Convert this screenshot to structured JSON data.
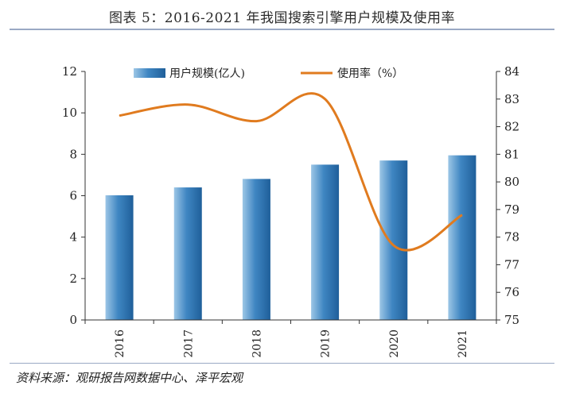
{
  "header": {
    "title": "图表 5：2016-2021 年我国搜索引擎用户规模及使用率"
  },
  "footer": {
    "source": "资料来源：观研报告网数据中心、泽平宏观"
  },
  "colors": {
    "bar_top": "#9cc6e6",
    "bar_mid": "#3f86c2",
    "bar_dark": "#1f5f9a",
    "line": "#e07b1f",
    "axis": "#333333"
  },
  "chart_data": {
    "type": "bar+line",
    "categories": [
      "2016",
      "2017",
      "2018",
      "2019",
      "2020",
      "2021"
    ],
    "series": [
      {
        "name": "用户规模(亿人)",
        "type": "bar",
        "axis": "left",
        "values": [
          6.02,
          6.4,
          6.81,
          7.5,
          7.7,
          7.95
        ]
      },
      {
        "name": "使用率（%）",
        "type": "line",
        "axis": "right",
        "values": [
          82.4,
          82.8,
          82.2,
          83.0,
          77.7,
          78.8
        ]
      }
    ],
    "left_axis": {
      "ylim": [
        0,
        12
      ],
      "ticks": [
        "0",
        "2",
        "4",
        "6",
        "8",
        "10",
        "12"
      ]
    },
    "right_axis": {
      "ylim": [
        75,
        84
      ],
      "ticks": [
        "75",
        "76",
        "77",
        "78",
        "79",
        "80",
        "81",
        "82",
        "83",
        "84"
      ]
    },
    "legend_position": "top",
    "grid": false
  }
}
